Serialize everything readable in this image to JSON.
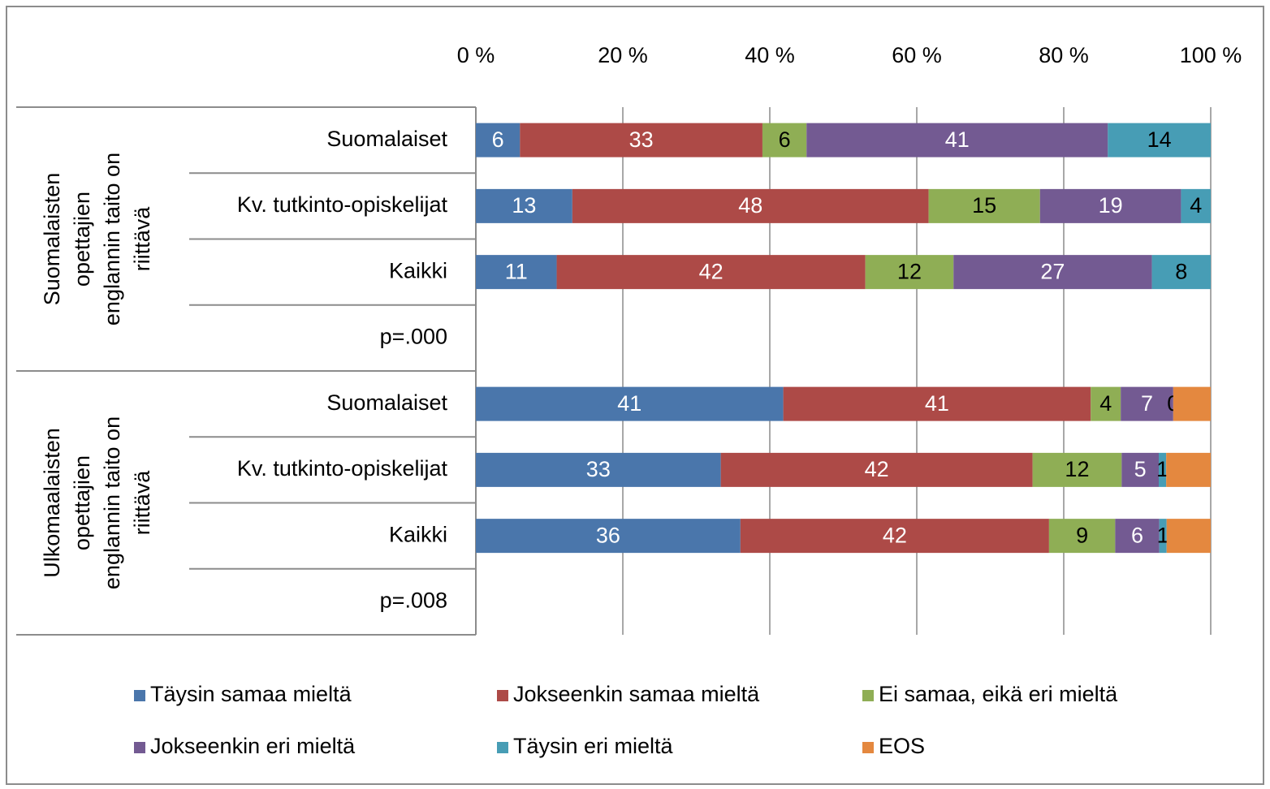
{
  "chart_data": {
    "type": "bar",
    "orientation": "horizontal",
    "percent_stacked": true,
    "groups": [
      {
        "label": [
          "Suomalaisten",
          "opettajien",
          "englannin taito on",
          "riittävä"
        ],
        "categories": [
          "Suomalaiset",
          "Kv. tutkinto-opiskelijat",
          "Kaikki",
          "p=.000"
        ]
      },
      {
        "label": [
          "Ulkomaalaisten",
          "opettajien",
          "englannin taito on",
          "riittävä"
        ],
        "categories": [
          "Suomalaiset",
          "Kv. tutkinto-opiskelijat",
          "Kaikki",
          "p=.008"
        ]
      }
    ],
    "series": [
      {
        "name": "Täysin samaa mieltä",
        "color": "#4a76ab",
        "label_color": "#ffffff",
        "values": [
          6,
          13,
          11,
          null,
          41,
          33,
          36,
          null
        ]
      },
      {
        "name": "Jokseenkin samaa mieltä",
        "color": "#ad4a47",
        "label_color": "#ffffff",
        "values": [
          33,
          48,
          42,
          null,
          41,
          42,
          42,
          null
        ]
      },
      {
        "name": "Ei samaa, eikä eri mieltä",
        "color": "#8fae55",
        "label_color": "#000000",
        "values": [
          6,
          15,
          12,
          null,
          4,
          12,
          9,
          null
        ]
      },
      {
        "name": "Jokseenkin eri mieltä",
        "color": "#735a92",
        "label_color": "#ffffff",
        "values": [
          41,
          19,
          27,
          null,
          7,
          5,
          6,
          null
        ]
      },
      {
        "name": "Täysin eri mieltä",
        "color": "#479db5",
        "label_color": "#000000",
        "values": [
          14,
          4,
          8,
          null,
          0,
          1,
          1,
          null
        ]
      },
      {
        "name": "EOS",
        "color": "#e4883f",
        "label_color": "#000000",
        "values": [
          0,
          0,
          0,
          null,
          5,
          6,
          6,
          null
        ],
        "value_labels": [
          null,
          null,
          null,
          null,
          null,
          null,
          null,
          null
        ]
      }
    ],
    "xlim": [
      0,
      100
    ],
    "xticks": [
      {
        "value": 0,
        "label": "0 %"
      },
      {
        "value": 20,
        "label": "20 %"
      },
      {
        "value": 40,
        "label": "40 %"
      },
      {
        "value": 60,
        "label": "60 %"
      },
      {
        "value": 80,
        "label": "80 %"
      },
      {
        "value": 100,
        "label": "100 %"
      }
    ],
    "grid": true,
    "legend": "bottom"
  }
}
